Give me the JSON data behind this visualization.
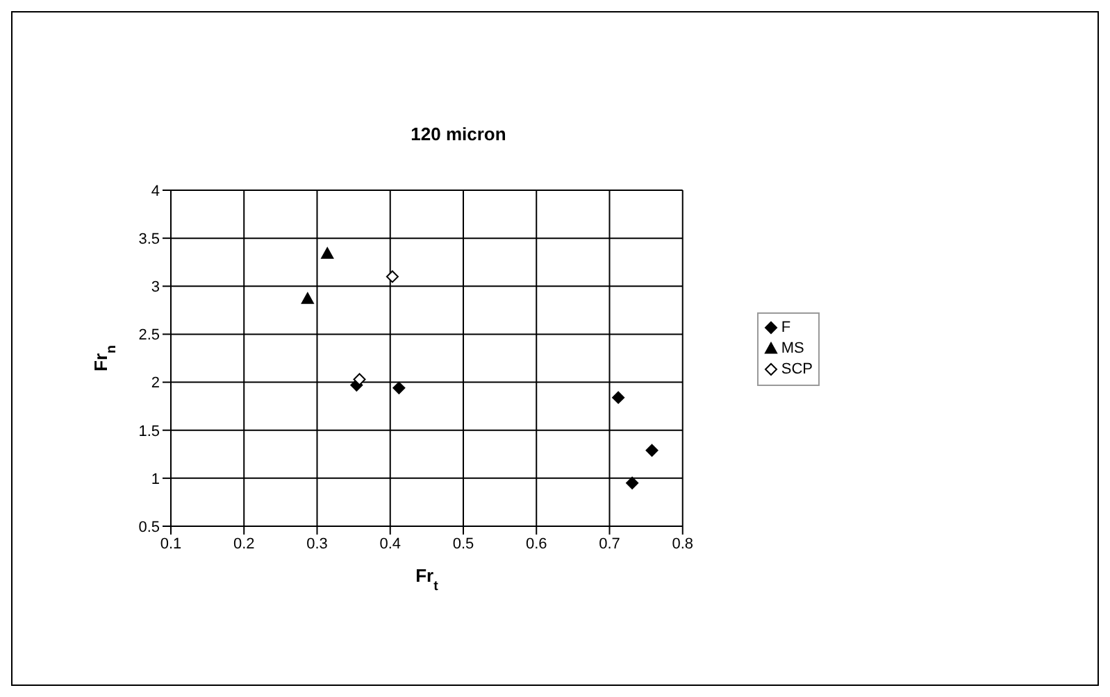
{
  "chart_data": {
    "type": "scatter",
    "title": "120 micron",
    "xlabel": "Fr$_{t}$",
    "ylabel": "Fr$_{n}$",
    "series": [
      {
        "name": "F",
        "color": "#000000",
        "marker": "diamond",
        "x": [
          0.354,
          0.412,
          0.712,
          0.731,
          0.758
        ],
        "values": [
          1.97,
          1.94,
          1.84,
          0.95,
          1.29
        ]
      },
      {
        "name": "MS",
        "color": "#000000",
        "marker": "triangle",
        "x": [
          0.287,
          0.314
        ],
        "values": [
          2.87,
          3.34
        ]
      },
      {
        "name": "SCP",
        "color": "#ffffff",
        "marker": "diamond",
        "x": [
          0.358,
          0.403
        ],
        "values": [
          2.03,
          3.1
        ]
      }
    ],
    "xlim": [
      0.1,
      0.8
    ],
    "xticks": [
      0.1,
      0.2,
      0.3,
      0.4,
      0.5,
      0.6,
      0.7,
      0.8
    ],
    "ylim": [
      0.5,
      4
    ],
    "yticks": [
      0.5,
      1,
      1.5,
      2,
      2.5,
      3,
      3.5,
      4
    ],
    "grid": true,
    "legend": "right"
  }
}
